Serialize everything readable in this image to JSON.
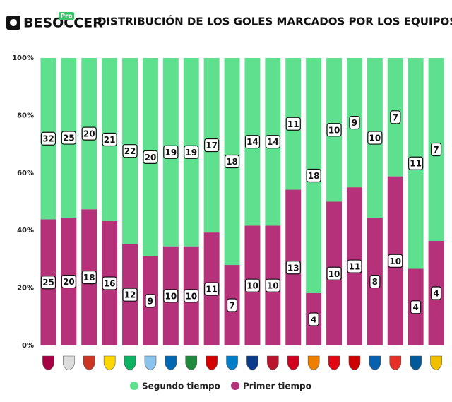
{
  "header": {
    "brand": "BESOCCER",
    "badge": "Pro"
  },
  "chart_data": {
    "type": "bar",
    "stack": "percent",
    "title": "DISTRIBUCIÓN DE LOS GOLES MARCADOS POR LOS EQUIPOS",
    "categories": [
      null,
      null,
      null,
      null,
      null,
      null,
      null,
      null,
      null,
      null,
      null,
      null,
      null,
      null,
      null,
      null,
      null,
      null,
      null,
      null
    ],
    "series": [
      {
        "name": "Segundo tiempo",
        "color": "#5ee08f",
        "values": [
          32,
          25,
          20,
          21,
          22,
          20,
          19,
          19,
          17,
          18,
          14,
          14,
          11,
          18,
          10,
          9,
          10,
          7,
          11,
          7
        ]
      },
      {
        "name": "Primer tiempo",
        "color": "#b5317a",
        "values": [
          25,
          20,
          18,
          16,
          12,
          9,
          10,
          10,
          11,
          7,
          10,
          10,
          13,
          4,
          10,
          11,
          8,
          10,
          4,
          4
        ]
      }
    ],
    "ylim": [
      0,
      100
    ],
    "yticks": [
      {
        "value": 0,
        "label": "0%"
      },
      {
        "value": 20,
        "label": "20%"
      },
      {
        "value": 40,
        "label": "40%"
      },
      {
        "value": 60,
        "label": "60%"
      },
      {
        "value": 80,
        "label": "80%"
      },
      {
        "value": 100,
        "label": "100%"
      }
    ],
    "legend": "bottom"
  }
}
